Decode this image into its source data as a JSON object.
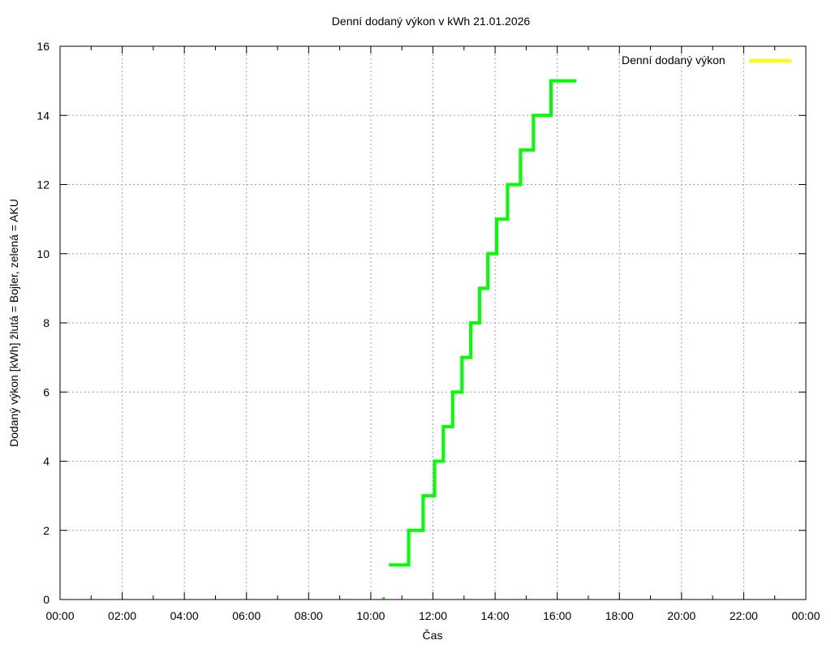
{
  "chart_data": {
    "type": "line",
    "subtype": "step",
    "title": "Denní dodaný výkon v kWh 21.01.2026",
    "xlabel": "Čas",
    "ylabel": "Dodaný výkon [kWh]  žlutá = Bojler, zelená = AKU",
    "xlim": [
      "00:00",
      "00:00 (+1 day)"
    ],
    "ylim": [
      0,
      16
    ],
    "x_tick_labels": [
      "00:00",
      "02:00",
      "04:00",
      "06:00",
      "08:00",
      "10:00",
      "12:00",
      "14:00",
      "16:00",
      "18:00",
      "20:00",
      "22:00",
      "00:00"
    ],
    "y_tick_labels": [
      "0",
      "2",
      "4",
      "6",
      "8",
      "10",
      "12",
      "14",
      "16"
    ],
    "grid": true,
    "legend": {
      "position": "top-right",
      "entries": [
        {
          "label": "Denní dodaný výkon",
          "color": "#ffff00"
        }
      ]
    },
    "series": [
      {
        "name": "Bojler (žlutá)",
        "color": "#ffff00",
        "points": []
      },
      {
        "name": "AKU (zelená)",
        "color": "#00ff00",
        "points": [
          {
            "time": "10:25",
            "value": 0
          },
          {
            "time": "10:35",
            "value": 1
          },
          {
            "time": "11:13",
            "value": 2
          },
          {
            "time": "11:41",
            "value": 3
          },
          {
            "time": "12:03",
            "value": 4
          },
          {
            "time": "12:20",
            "value": 5
          },
          {
            "time": "12:38",
            "value": 6
          },
          {
            "time": "12:56",
            "value": 7
          },
          {
            "time": "13:13",
            "value": 8
          },
          {
            "time": "13:30",
            "value": 9
          },
          {
            "time": "13:46",
            "value": 10
          },
          {
            "time": "14:03",
            "value": 11
          },
          {
            "time": "14:24",
            "value": 12
          },
          {
            "time": "14:49",
            "value": 13
          },
          {
            "time": "15:14",
            "value": 14
          },
          {
            "time": "15:48",
            "value": 15
          },
          {
            "time": "16:37",
            "value": 15
          }
        ]
      }
    ]
  },
  "labels": {
    "title": "Denní dodaný výkon v kWh 21.01.2026",
    "xlabel": "Čas",
    "ylabel": "Dodaný výkon [kWh]  žlutá = Bojler, zelená = AKU",
    "legend": "Denní dodaný výkon"
  }
}
